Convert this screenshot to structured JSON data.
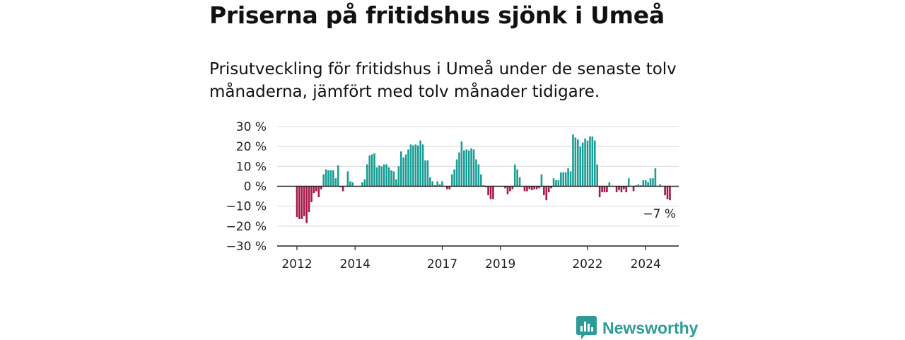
{
  "title": "Priserna på fritidshus sjönk i Umeå",
  "subtitle": "Prisutveckling för fritidshus i Umeå under de senaste tolv månaderna, jämfört med tolv månader tidigare.",
  "brand": {
    "name": "Newsworthy",
    "color": "#2e9c96"
  },
  "chart_data": {
    "type": "bar",
    "title": "",
    "xlabel": "",
    "ylabel": "",
    "ylim": [
      -30,
      30
    ],
    "yticks": [
      30,
      20,
      10,
      0,
      -10,
      -20,
      -30
    ],
    "ytick_labels": [
      "30 %",
      "20 %",
      "10 %",
      "0 %",
      "−10 %",
      "−20 %",
      "−30 %"
    ],
    "xtick_labels": [
      {
        "label": "2012",
        "month": 0
      },
      {
        "label": "2014",
        "month": 24
      },
      {
        "label": "2017",
        "month": 60
      },
      {
        "label": "2019",
        "month": 84
      },
      {
        "label": "2022",
        "month": 120
      },
      {
        "label": "2024",
        "month": 144
      }
    ],
    "x_start": "2012-01",
    "x_unit": "month",
    "colors": {
      "positive": "#1a9e96",
      "negative": "#a5174a"
    },
    "grid": true,
    "annotation": {
      "text": "−7 %",
      "month": 158
    },
    "values": [
      -15.5,
      -16.5,
      -16.5,
      -15,
      -18.5,
      -13,
      -8,
      -3.5,
      -2.5,
      -5.5,
      -1.5,
      6,
      8.5,
      8,
      8,
      8,
      4,
      10.5,
      -0.5,
      -2.5,
      0,
      7.5,
      2.5,
      2,
      0,
      0,
      0,
      2,
      3.5,
      11,
      15.5,
      16,
      16.5,
      9.5,
      10.5,
      10,
      11,
      11,
      9.5,
      8,
      7.5,
      3.5,
      10,
      17.5,
      14.5,
      16,
      18.5,
      21,
      20.5,
      21,
      20.5,
      23,
      21,
      13,
      13,
      4.5,
      2.5,
      0.5,
      2.5,
      1,
      2.5,
      0,
      -1.5,
      -1.5,
      6,
      8.5,
      13.5,
      17,
      22.5,
      18,
      18.5,
      18,
      19,
      18.5,
      13.5,
      11,
      6,
      0.5,
      -0.5,
      -4.5,
      -6.5,
      -6.5,
      0,
      0,
      0,
      0,
      -1,
      -4,
      -2.5,
      -1.5,
      11,
      8.5,
      4.5,
      0,
      -2.5,
      -2.5,
      -1.5,
      -2,
      -1.5,
      -1.5,
      -1,
      6,
      -4.5,
      -7,
      -3,
      -1,
      4,
      3,
      3,
      7,
      7,
      7,
      9,
      7.5,
      26,
      24.5,
      23.5,
      20,
      22,
      24,
      23,
      25,
      25,
      23,
      11,
      -5.5,
      -3,
      -3,
      -3,
      2,
      0,
      0,
      -3,
      -2,
      -3,
      -1.5,
      -3,
      4,
      0,
      -2.5,
      0.5,
      1,
      0.5,
      3,
      3,
      2,
      4,
      4,
      9,
      0,
      1,
      0,
      -4.5,
      -6.5,
      -7
    ]
  }
}
